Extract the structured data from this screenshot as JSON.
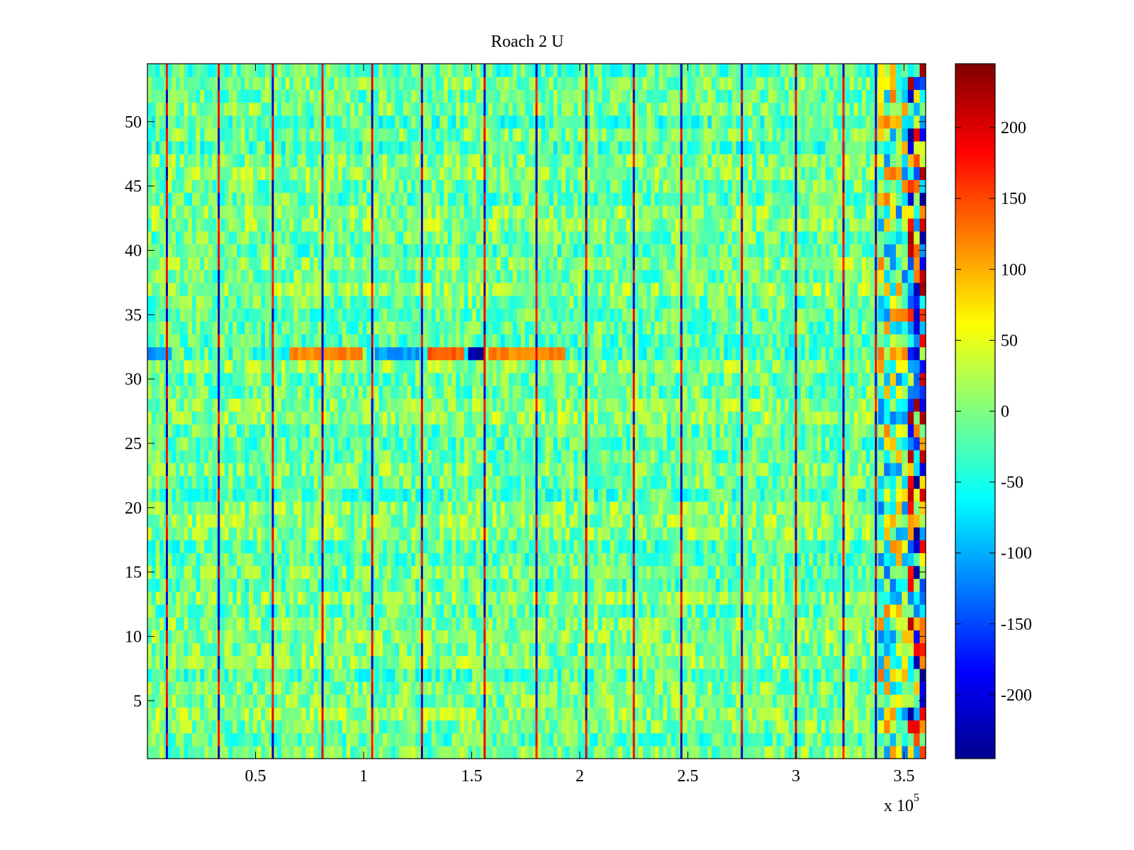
{
  "chart_data": {
    "type": "heatmap",
    "title": "Roach 2 U",
    "xlabel": "",
    "ylabel": "",
    "x_exponent_label": "x 10",
    "x_exponent_power": "5",
    "xlim": [
      0,
      3.6
    ],
    "ylim": [
      0.5,
      54.5
    ],
    "x_ticks": [
      0.5,
      1,
      1.5,
      2,
      2.5,
      3,
      3.5
    ],
    "x_tick_labels": [
      "0.5",
      "1",
      "1.5",
      "2",
      "2.5",
      "3",
      "3.5"
    ],
    "y_ticks": [
      5,
      10,
      15,
      20,
      25,
      30,
      35,
      40,
      45,
      50
    ],
    "y_tick_labels": [
      "5",
      "10",
      "15",
      "20",
      "25",
      "30",
      "35",
      "40",
      "45",
      "50"
    ],
    "rows": 54,
    "colorbar": {
      "colormap": "jet",
      "clim": [
        -245,
        245
      ],
      "ticks": [
        -200,
        -150,
        -100,
        -50,
        0,
        50,
        100,
        150,
        200
      ],
      "tick_labels": [
        "-200",
        "-150",
        "-100",
        "-50",
        "0",
        "50",
        "100",
        "150",
        "200"
      ]
    },
    "features": {
      "periodic_spike_columns_x": [
        0.09,
        0.33,
        0.58,
        0.81,
        1.04,
        1.27,
        1.56,
        1.8,
        2.03,
        2.25,
        2.47,
        2.75,
        3.0,
        3.22,
        3.37
      ],
      "spike_value_range": [
        -230,
        200
      ],
      "background_value_range": [
        -60,
        40
      ],
      "row_32_segments": [
        {
          "x_start": 0.0,
          "x_end": 0.1,
          "value": -110
        },
        {
          "x_start": 0.65,
          "x_end": 0.98,
          "value": 120
        },
        {
          "x_start": 1.05,
          "x_end": 1.25,
          "value": -110
        },
        {
          "x_start": 1.28,
          "x_end": 1.45,
          "value": 140
        },
        {
          "x_start": 1.47,
          "x_end": 1.55,
          "value": -220
        },
        {
          "x_start": 1.57,
          "x_end": 1.93,
          "value": 120
        }
      ],
      "end_region_x_start": 3.38,
      "end_region_value_range": [
        -240,
        240
      ]
    }
  }
}
